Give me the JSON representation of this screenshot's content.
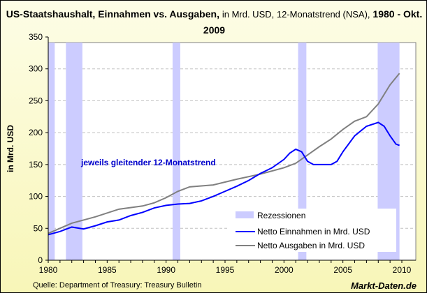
{
  "chart_data": {
    "type": "line",
    "title": {
      "bold1": "US-Staatshaushalt, Einnahmen vs. Ausgaben,",
      "normal": "in Mrd. USD, 12-Monatstrend (NSA),",
      "bold2": "1980 - Okt. 2009"
    },
    "ylabel": "in Mrd. USD",
    "xlabel": "",
    "ylim": [
      0,
      350
    ],
    "xlim": [
      1980,
      2010
    ],
    "yticks": [
      0,
      50,
      100,
      150,
      200,
      250,
      300,
      350
    ],
    "xticks": [
      1980,
      1985,
      1990,
      1995,
      2000,
      2005,
      2010
    ],
    "grid": true,
    "annotation": "jeweils gleitender 12-Monatstrend",
    "legend_placement": "bottom-right",
    "recessions": {
      "name": "Rezessionen",
      "color": "#ccccff",
      "periods": [
        [
          1980.0,
          1980.55
        ],
        [
          1981.5,
          1982.9
        ],
        [
          1990.55,
          1991.2
        ],
        [
          2001.2,
          2001.9
        ],
        [
          2007.95,
          2009.8
        ]
      ]
    },
    "series": [
      {
        "name": "Netto Einnahmen in Mrd. USD",
        "color": "#0000ff",
        "x": [
          1980,
          1981,
          1982,
          1983,
          1984,
          1985,
          1986,
          1987,
          1988,
          1989,
          1990,
          1991,
          1992,
          1993,
          1994,
          1995,
          1996,
          1997,
          1998,
          1999,
          2000,
          2000.5,
          2001,
          2001.5,
          2002,
          2002.5,
          2003,
          2004,
          2004.5,
          2005,
          2006,
          2007,
          2008,
          2008.5,
          2009,
          2009.5,
          2009.8
        ],
        "values": [
          40,
          45,
          52,
          49,
          54,
          60,
          63,
          70,
          75,
          82,
          86,
          88,
          89,
          93,
          100,
          108,
          116,
          125,
          136,
          145,
          158,
          168,
          174,
          170,
          155,
          150,
          150,
          150,
          155,
          170,
          195,
          210,
          216,
          210,
          195,
          182,
          180
        ]
      },
      {
        "name": "Netto Ausgaben in Mrd. USD",
        "color": "#808080",
        "x": [
          1980,
          1982,
          1984,
          1986,
          1988,
          1989,
          1990,
          1991,
          1992,
          1994,
          1996,
          1998,
          2000,
          2001,
          2002,
          2003,
          2004,
          2005,
          2006,
          2007,
          2008,
          2009,
          2009.8
        ],
        "values": [
          42,
          58,
          68,
          80,
          85,
          90,
          98,
          108,
          115,
          118,
          127,
          135,
          145,
          152,
          165,
          178,
          190,
          205,
          218,
          225,
          245,
          275,
          293
        ]
      }
    ]
  },
  "footer": {
    "source": "Quelle: Department of Treasury: Treasury Bulletin",
    "brand": "Markt-Daten.de"
  }
}
